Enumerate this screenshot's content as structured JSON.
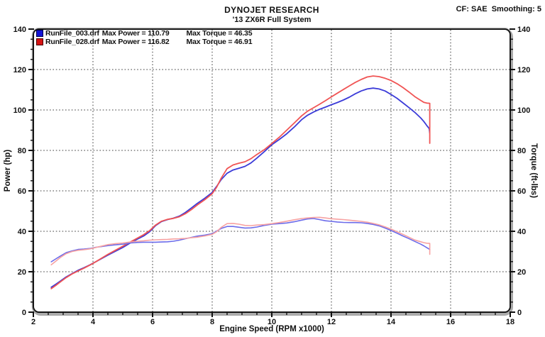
{
  "header": {
    "title": "DYNOJET RESEARCH",
    "subtitle": "'13 ZX6R Full System",
    "cf_label": "CF: SAE  Smoothing: 5"
  },
  "legend": [
    {
      "file": "RunFile_003.drf",
      "power_label": "Max Power = 110.79",
      "torque_label": "Max Torque = 46.35",
      "swatch_color": "#1414d6",
      "swatch_border": "#00004a"
    },
    {
      "file": "RunFile_028.drf",
      "power_label": "Max Power = 116.82",
      "torque_label": "Max Torque = 46.91",
      "swatch_color": "#d61414",
      "swatch_border": "#4a0000"
    }
  ],
  "chart_data": {
    "type": "line",
    "title": "DYNOJET RESEARCH",
    "subtitle": "'13 ZX6R Full System",
    "xlabel": "Engine Speed (RPM x1000)",
    "ylabel_left": "Power (hp)",
    "ylabel_right": "Torque (ft-lbs)",
    "xlim": [
      2,
      18
    ],
    "ylim": [
      0,
      140
    ],
    "x_major_step": 2,
    "x_minor_step": 0.5,
    "y_major_step": 20,
    "y_minor_step": 5,
    "grid": "dotted major gridlines",
    "legend_position": "top-left",
    "frame_style": {
      "line_color": "#161616",
      "bevel_color": "#ababab",
      "grid_color": "#3c3c3c"
    },
    "series": [
      {
        "name": "RunFile_003.drf Power (hp)",
        "run": "RunFile_003.drf",
        "quantity": "power",
        "max_value": 110.79,
        "color": "#3b3bd8",
        "width": 1.8,
        "points": [
          [
            2.6,
            12.3
          ],
          [
            2.75,
            13.8
          ],
          [
            2.9,
            15.3
          ],
          [
            3.1,
            17.4
          ],
          [
            3.3,
            19.1
          ],
          [
            3.5,
            20.7
          ],
          [
            3.7,
            22.0
          ],
          [
            3.9,
            23.4
          ],
          [
            4.1,
            25.0
          ],
          [
            4.3,
            26.6
          ],
          [
            4.5,
            28.2
          ],
          [
            4.75,
            30.1
          ],
          [
            5.0,
            32.0
          ],
          [
            5.25,
            34.2
          ],
          [
            5.5,
            36.2
          ],
          [
            5.7,
            37.7
          ],
          [
            5.9,
            39.8
          ],
          [
            6.1,
            42.8
          ],
          [
            6.3,
            44.8
          ],
          [
            6.5,
            45.8
          ],
          [
            6.7,
            46.5
          ],
          [
            6.9,
            47.5
          ],
          [
            7.1,
            49.3
          ],
          [
            7.3,
            51.5
          ],
          [
            7.5,
            53.8
          ],
          [
            7.75,
            56.3
          ],
          [
            8.0,
            59.2
          ],
          [
            8.15,
            62.2
          ],
          [
            8.3,
            65.5
          ],
          [
            8.5,
            68.7
          ],
          [
            8.7,
            70.3
          ],
          [
            8.9,
            71.2
          ],
          [
            9.1,
            72.1
          ],
          [
            9.3,
            73.8
          ],
          [
            9.5,
            76.2
          ],
          [
            9.75,
            79.4
          ],
          [
            10.0,
            82.8
          ],
          [
            10.25,
            85.4
          ],
          [
            10.5,
            88.2
          ],
          [
            10.75,
            91.5
          ],
          [
            11.0,
            95.2
          ],
          [
            11.2,
            97.4
          ],
          [
            11.4,
            99.0
          ],
          [
            11.6,
            100.3
          ],
          [
            11.8,
            101.4
          ],
          [
            12.0,
            102.6
          ],
          [
            12.2,
            103.7
          ],
          [
            12.4,
            104.9
          ],
          [
            12.6,
            106.3
          ],
          [
            12.8,
            108.0
          ],
          [
            13.0,
            109.4
          ],
          [
            13.2,
            110.4
          ],
          [
            13.4,
            110.8
          ],
          [
            13.6,
            110.4
          ],
          [
            13.8,
            109.4
          ],
          [
            14.0,
            107.7
          ],
          [
            14.2,
            105.8
          ],
          [
            14.4,
            103.5
          ],
          [
            14.6,
            101.2
          ],
          [
            14.8,
            98.8
          ],
          [
            15.0,
            96.0
          ],
          [
            15.1,
            94.3
          ],
          [
            15.2,
            92.3
          ],
          [
            15.28,
            90.8
          ],
          [
            15.3,
            88.6
          ]
        ]
      },
      {
        "name": "RunFile_028.drf Power (hp)",
        "run": "RunFile_028.drf",
        "quantity": "power",
        "max_value": 116.82,
        "color": "#f05454",
        "width": 1.8,
        "points": [
          [
            2.6,
            11.6
          ],
          [
            2.75,
            13.2
          ],
          [
            2.9,
            14.9
          ],
          [
            3.1,
            17.1
          ],
          [
            3.3,
            18.9
          ],
          [
            3.5,
            20.4
          ],
          [
            3.7,
            21.8
          ],
          [
            3.9,
            23.3
          ],
          [
            4.1,
            25.0
          ],
          [
            4.3,
            26.8
          ],
          [
            4.5,
            28.6
          ],
          [
            4.75,
            30.6
          ],
          [
            5.0,
            32.6
          ],
          [
            5.25,
            34.7
          ],
          [
            5.5,
            36.7
          ],
          [
            5.7,
            38.3
          ],
          [
            5.9,
            40.3
          ],
          [
            6.1,
            43.1
          ],
          [
            6.3,
            45.0
          ],
          [
            6.5,
            45.9
          ],
          [
            6.7,
            46.4
          ],
          [
            6.9,
            47.2
          ],
          [
            7.1,
            48.7
          ],
          [
            7.3,
            50.7
          ],
          [
            7.5,
            53.0
          ],
          [
            7.75,
            55.6
          ],
          [
            8.0,
            58.6
          ],
          [
            8.15,
            61.8
          ],
          [
            8.3,
            66.2
          ],
          [
            8.5,
            71.0
          ],
          [
            8.7,
            72.8
          ],
          [
            8.9,
            73.7
          ],
          [
            9.1,
            74.4
          ],
          [
            9.3,
            75.9
          ],
          [
            9.5,
            78.0
          ],
          [
            9.75,
            80.4
          ],
          [
            10.0,
            83.4
          ],
          [
            10.25,
            86.5
          ],
          [
            10.5,
            90.0
          ],
          [
            10.75,
            93.5
          ],
          [
            11.0,
            97.1
          ],
          [
            11.2,
            99.4
          ],
          [
            11.4,
            101.1
          ],
          [
            11.6,
            102.8
          ],
          [
            11.8,
            104.6
          ],
          [
            12.0,
            106.5
          ],
          [
            12.2,
            108.3
          ],
          [
            12.4,
            110.1
          ],
          [
            12.6,
            111.9
          ],
          [
            12.8,
            113.6
          ],
          [
            13.0,
            115.1
          ],
          [
            13.2,
            116.3
          ],
          [
            13.4,
            116.8
          ],
          [
            13.6,
            116.5
          ],
          [
            13.8,
            115.7
          ],
          [
            14.0,
            114.6
          ],
          [
            14.2,
            113.0
          ],
          [
            14.4,
            111.1
          ],
          [
            14.6,
            108.9
          ],
          [
            14.8,
            106.6
          ],
          [
            15.0,
            104.7
          ],
          [
            15.1,
            103.8
          ],
          [
            15.2,
            103.4
          ],
          [
            15.3,
            103.3
          ],
          [
            15.3,
            83.5
          ]
        ]
      },
      {
        "name": "RunFile_003.drf Torque (ft-lbs)",
        "run": "RunFile_003.drf",
        "quantity": "torque",
        "max_value": 46.35,
        "color": "#6b6bea",
        "width": 1.6,
        "points": [
          [
            2.6,
            24.9
          ],
          [
            2.75,
            26.3
          ],
          [
            2.9,
            27.7
          ],
          [
            3.1,
            29.4
          ],
          [
            3.3,
            30.3
          ],
          [
            3.5,
            31.0
          ],
          [
            3.7,
            31.2
          ],
          [
            3.9,
            31.5
          ],
          [
            4.1,
            32.1
          ],
          [
            4.3,
            32.5
          ],
          [
            4.5,
            32.9
          ],
          [
            4.75,
            33.3
          ],
          [
            5.0,
            33.6
          ],
          [
            5.25,
            34.2
          ],
          [
            5.5,
            34.5
          ],
          [
            5.7,
            34.6
          ],
          [
            5.9,
            34.6
          ],
          [
            6.1,
            34.6
          ],
          [
            6.3,
            34.7
          ],
          [
            6.5,
            34.8
          ],
          [
            6.7,
            35.1
          ],
          [
            6.9,
            35.6
          ],
          [
            7.1,
            36.3
          ],
          [
            7.3,
            37.0
          ],
          [
            7.5,
            37.6
          ],
          [
            7.75,
            38.1
          ],
          [
            8.0,
            38.8
          ],
          [
            8.15,
            40.1
          ],
          [
            8.3,
            41.4
          ],
          [
            8.5,
            42.4
          ],
          [
            8.7,
            42.4
          ],
          [
            8.9,
            42.0
          ],
          [
            9.1,
            41.6
          ],
          [
            9.3,
            41.7
          ],
          [
            9.5,
            42.1
          ],
          [
            9.75,
            42.9
          ],
          [
            10.0,
            43.5
          ],
          [
            10.25,
            43.8
          ],
          [
            10.5,
            44.1
          ],
          [
            10.75,
            44.7
          ],
          [
            11.0,
            45.5
          ],
          [
            11.2,
            46.1
          ],
          [
            11.4,
            46.3
          ],
          [
            11.6,
            45.8
          ],
          [
            11.8,
            45.2
          ],
          [
            12.0,
            44.9
          ],
          [
            12.2,
            44.6
          ],
          [
            12.4,
            44.4
          ],
          [
            12.6,
            44.3
          ],
          [
            12.8,
            44.3
          ],
          [
            13.0,
            44.2
          ],
          [
            13.2,
            43.9
          ],
          [
            13.4,
            43.4
          ],
          [
            13.6,
            42.7
          ],
          [
            13.8,
            41.6
          ],
          [
            14.0,
            40.4
          ],
          [
            14.2,
            39.1
          ],
          [
            14.4,
            37.7
          ],
          [
            14.6,
            36.4
          ],
          [
            14.8,
            35.0
          ],
          [
            15.0,
            33.6
          ],
          [
            15.1,
            32.8
          ],
          [
            15.2,
            31.9
          ],
          [
            15.3,
            31.0
          ]
        ]
      },
      {
        "name": "RunFile_028.drf Torque (ft-lbs)",
        "run": "RunFile_028.drf",
        "quantity": "torque",
        "max_value": 46.91,
        "color": "#f7a2a2",
        "width": 1.6,
        "points": [
          [
            2.6,
            23.4
          ],
          [
            2.75,
            25.2
          ],
          [
            2.9,
            27.0
          ],
          [
            3.1,
            28.9
          ],
          [
            3.3,
            30.0
          ],
          [
            3.5,
            30.6
          ],
          [
            3.7,
            30.9
          ],
          [
            3.9,
            31.3
          ],
          [
            4.1,
            32.0
          ],
          [
            4.3,
            32.7
          ],
          [
            4.5,
            33.4
          ],
          [
            4.75,
            33.9
          ],
          [
            5.0,
            34.2
          ],
          [
            5.25,
            34.7
          ],
          [
            5.5,
            35.1
          ],
          [
            5.7,
            35.3
          ],
          [
            5.9,
            35.6
          ],
          [
            6.1,
            35.8
          ],
          [
            6.3,
            35.9
          ],
          [
            6.5,
            36.0
          ],
          [
            6.7,
            36.2
          ],
          [
            6.9,
            36.3
          ],
          [
            7.1,
            36.5
          ],
          [
            7.3,
            36.8
          ],
          [
            7.5,
            37.1
          ],
          [
            7.75,
            37.7
          ],
          [
            8.0,
            38.5
          ],
          [
            8.15,
            39.8
          ],
          [
            8.3,
            41.9
          ],
          [
            8.5,
            43.8
          ],
          [
            8.7,
            43.9
          ],
          [
            8.9,
            43.5
          ],
          [
            9.1,
            42.9
          ],
          [
            9.3,
            42.8
          ],
          [
            9.5,
            43.1
          ],
          [
            9.75,
            43.3
          ],
          [
            10.0,
            43.8
          ],
          [
            10.25,
            44.3
          ],
          [
            10.5,
            45.0
          ],
          [
            10.75,
            45.7
          ],
          [
            11.0,
            46.3
          ],
          [
            11.2,
            46.6
          ],
          [
            11.4,
            46.8
          ],
          [
            11.6,
            46.9
          ],
          [
            11.8,
            46.6
          ],
          [
            12.0,
            46.2
          ],
          [
            12.2,
            46.0
          ],
          [
            12.4,
            45.8
          ],
          [
            12.6,
            45.5
          ],
          [
            12.8,
            45.2
          ],
          [
            13.0,
            44.9
          ],
          [
            13.2,
            44.5
          ],
          [
            13.4,
            43.9
          ],
          [
            13.6,
            43.2
          ],
          [
            13.8,
            42.2
          ],
          [
            14.0,
            41.1
          ],
          [
            14.2,
            39.8
          ],
          [
            14.4,
            38.5
          ],
          [
            14.6,
            37.1
          ],
          [
            14.8,
            35.7
          ],
          [
            15.0,
            34.8
          ],
          [
            15.1,
            34.4
          ],
          [
            15.2,
            34.1
          ],
          [
            15.3,
            34.0
          ],
          [
            15.3,
            28.6
          ]
        ]
      }
    ]
  }
}
